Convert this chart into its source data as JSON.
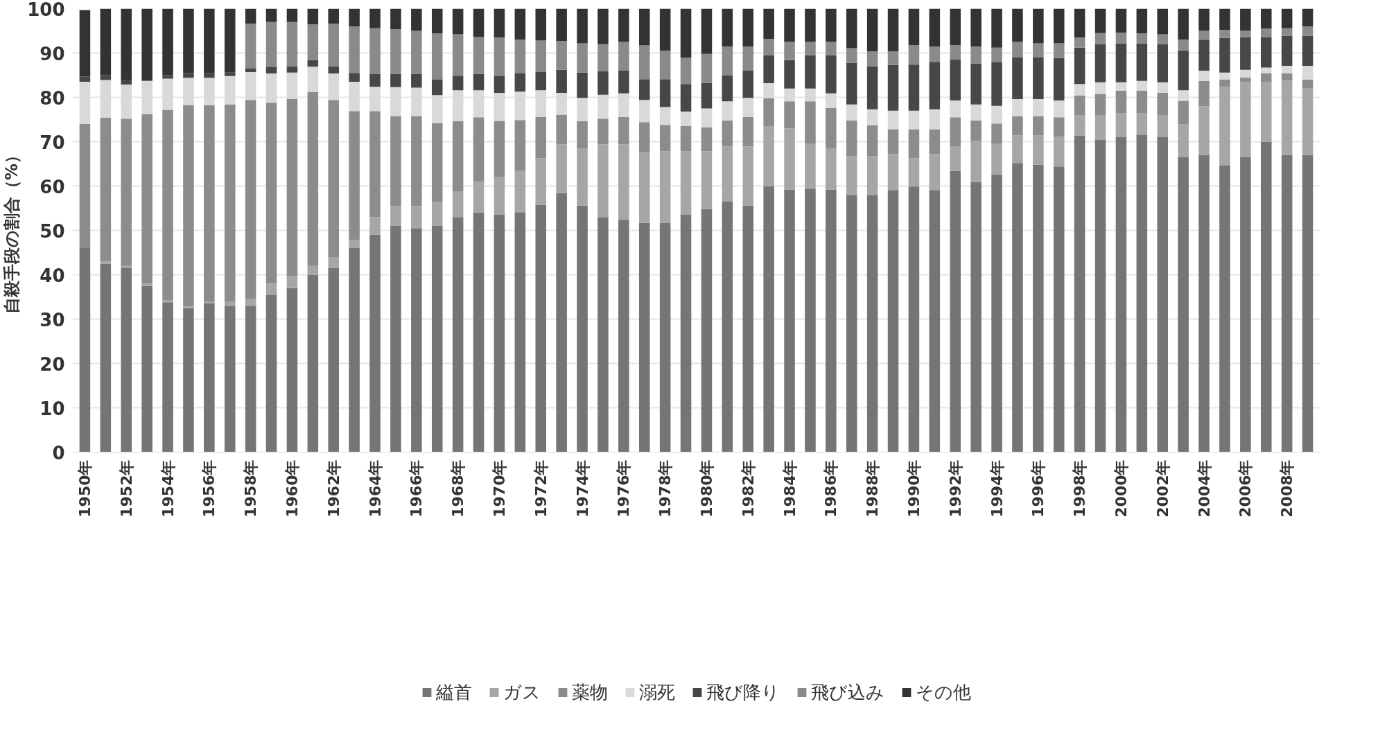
{
  "chart_data": {
    "type": "bar",
    "stacked": true,
    "ylabel": "自殺手段の割合（%）",
    "categories": [
      "1950年",
      null,
      "1952年",
      null,
      "1954年",
      null,
      "1956年",
      null,
      "1958年",
      null,
      "1960年",
      null,
      "1962年",
      null,
      "1964年",
      null,
      "1966年",
      null,
      "1968年",
      null,
      "1970年",
      null,
      "1972年",
      null,
      "1974年",
      null,
      "1976年",
      null,
      "1978年",
      null,
      "1980年",
      null,
      "1982年",
      null,
      "1984年",
      null,
      "1986年",
      null,
      "1988年",
      null,
      "1990年",
      null,
      "1992年",
      null,
      "1994年",
      null,
      "1996年",
      null,
      "1998年",
      null,
      "2000年",
      null,
      "2002年",
      null,
      "2004年",
      null,
      "2006年",
      null,
      "2008年",
      null
    ],
    "ylim": [
      0,
      100
    ],
    "yticks": [
      0,
      10,
      20,
      30,
      40,
      50,
      60,
      70,
      80,
      90,
      100
    ],
    "grid": "y",
    "legend": "bottom",
    "series": [
      {
        "name": "縊首",
        "color": "#757575",
        "values": [
          46,
          42.5,
          41.5,
          37.5,
          33.8,
          32.5,
          33.5,
          33,
          33,
          35.5,
          37,
          40,
          41.5,
          46,
          49,
          51,
          50.5,
          51,
          53,
          54,
          53.5,
          54.1,
          55.8,
          58.4,
          55.6,
          52.9,
          52.4,
          51.7,
          51.7,
          53.5,
          54.8,
          56.5,
          55.6,
          60,
          59.2,
          59.4,
          59.2,
          58,
          58,
          59.1,
          59.9,
          59.1,
          63.4,
          60.9,
          62.6,
          65.2,
          64.8,
          64.4,
          71.4,
          70.4,
          71,
          71.5,
          71,
          66.5,
          67,
          64.6,
          66.5,
          70,
          67,
          67
        ]
      },
      {
        "name": "ガス",
        "color": "#a6a6a6",
        "values": [
          null,
          0.5,
          0.5,
          0.5,
          0.5,
          0.3,
          0.5,
          1,
          1.5,
          2.5,
          2.7,
          2,
          2.5,
          1.8,
          4,
          4.5,
          5,
          5.5,
          5.7,
          7,
          8.5,
          9.4,
          10.5,
          11,
          12.8,
          16.5,
          17,
          15.8,
          16.1,
          14.3,
          13,
          12.4,
          13.3,
          13.5,
          13.8,
          10.1,
          9.3,
          8.7,
          8.7,
          8.1,
          6.4,
          8.1,
          5.6,
          9.2,
          6.9,
          6.2,
          6.6,
          6.7,
          4.6,
          5.6,
          5.5,
          5,
          5,
          7.5,
          11,
          17.8,
          17,
          13.5,
          16.8,
          15
        ]
      },
      {
        "name": "薬物",
        "color": "#8c8c8c",
        "values": [
          28,
          32.4,
          33.2,
          38.2,
          42.9,
          45.4,
          44.2,
          44.4,
          44.9,
          40.8,
          39.9,
          39.2,
          35.4,
          29.1,
          23.9,
          20.3,
          20.3,
          17.7,
          15.9,
          14.5,
          12.7,
          11.4,
          9.3,
          6.7,
          6.2,
          5.8,
          6.2,
          6.9,
          6,
          5.7,
          5.4,
          5.9,
          6.7,
          6.3,
          6.1,
          9.6,
          9.1,
          8.1,
          7,
          5.6,
          6.5,
          5.6,
          6.5,
          4.7,
          4.6,
          4.4,
          4.4,
          4.4,
          4.4,
          4.8,
          5,
          5,
          5,
          5.2,
          5.7,
          1.6,
          1,
          1.9,
          1.6,
          2
        ]
      },
      {
        "name": "溺死",
        "color": "#d9d9d9",
        "values": [
          9.5,
          8.5,
          7.7,
          7.5,
          7,
          6.2,
          6.2,
          6.4,
          6.3,
          6.6,
          6,
          5.7,
          6,
          6.6,
          5.5,
          6.5,
          6.4,
          6.3,
          7,
          6.1,
          6.3,
          6.4,
          6,
          4.9,
          5.3,
          5.4,
          5.3,
          5,
          4,
          3.3,
          4.3,
          4.3,
          4.3,
          3.4,
          2.9,
          2.9,
          3.3,
          3.6,
          3.6,
          4.2,
          4.2,
          4.5,
          3.8,
          3.6,
          4,
          3.8,
          3.8,
          3.8,
          2.6,
          2.6,
          1.9,
          2.2,
          2.4,
          2.4,
          2.3,
          1.6,
          1.7,
          1.3,
          1.7,
          3.1
        ]
      },
      {
        "name": "飛び降り",
        "color": "#474747",
        "values": [
          1.2,
          1.1,
          1.1,
          0.3,
          0.8,
          1.1,
          1.1,
          0.8,
          0.8,
          1.5,
          1.4,
          1.5,
          1.6,
          2,
          2.9,
          3,
          3.1,
          3.5,
          3.3,
          3.7,
          3.9,
          4.1,
          4.1,
          5.2,
          5.7,
          5.3,
          5.1,
          4.7,
          6.3,
          6.2,
          5.8,
          5.9,
          6.1,
          6.3,
          6.4,
          7.5,
          8.6,
          9.4,
          9.7,
          10.3,
          10.4,
          10.7,
          9.3,
          9.2,
          9.8,
          9.4,
          9.4,
          9.6,
          8.2,
          8.6,
          8.8,
          8.5,
          8.6,
          9,
          7,
          7.8,
          7.4,
          6.9,
          6.8,
          6.8
        ]
      },
      {
        "name": "飛び込み",
        "color": "#8a8a8a",
        "values": [
          0,
          0,
          0,
          0,
          0,
          0,
          0,
          0,
          10.1,
          10.1,
          10,
          8.1,
          9.6,
          10.5,
          10.3,
          10.1,
          9.7,
          10.4,
          9.3,
          8.3,
          8.6,
          7.6,
          7.1,
          6.5,
          6.6,
          6.1,
          6.5,
          7.6,
          6.4,
          6,
          6.5,
          6.5,
          5.5,
          3.7,
          4.1,
          3,
          3,
          3.3,
          3.4,
          3.1,
          4.4,
          3.5,
          3.2,
          3.9,
          3.3,
          3.5,
          3.2,
          3.3,
          2.3,
          2.5,
          2.4,
          2.2,
          2.2,
          2.4,
          2,
          1.8,
          1.4,
          1.9,
          1.7,
          2.1
        ]
      },
      {
        "name": "その他",
        "color": "#333333",
        "values": [
          15,
          15,
          16,
          16,
          15,
          14.5,
          14.5,
          14.4,
          3.4,
          3,
          3,
          3.5,
          3.4,
          4,
          4.4,
          4.6,
          5,
          5.6,
          5.8,
          6.4,
          6.5,
          7,
          7.2,
          7.3,
          7.8,
          8,
          7.5,
          8.3,
          9.5,
          11,
          10.2,
          8.5,
          8.5,
          6.8,
          7.5,
          7.5,
          7.5,
          8.9,
          9.6,
          9.6,
          8.2,
          8.5,
          8.2,
          8.5,
          8.8,
          7.5,
          7.8,
          7.8,
          6.5,
          5.5,
          5.4,
          5.6,
          5.8,
          7,
          5,
          4.8,
          5,
          4.5,
          4.4,
          4
        ]
      }
    ]
  }
}
